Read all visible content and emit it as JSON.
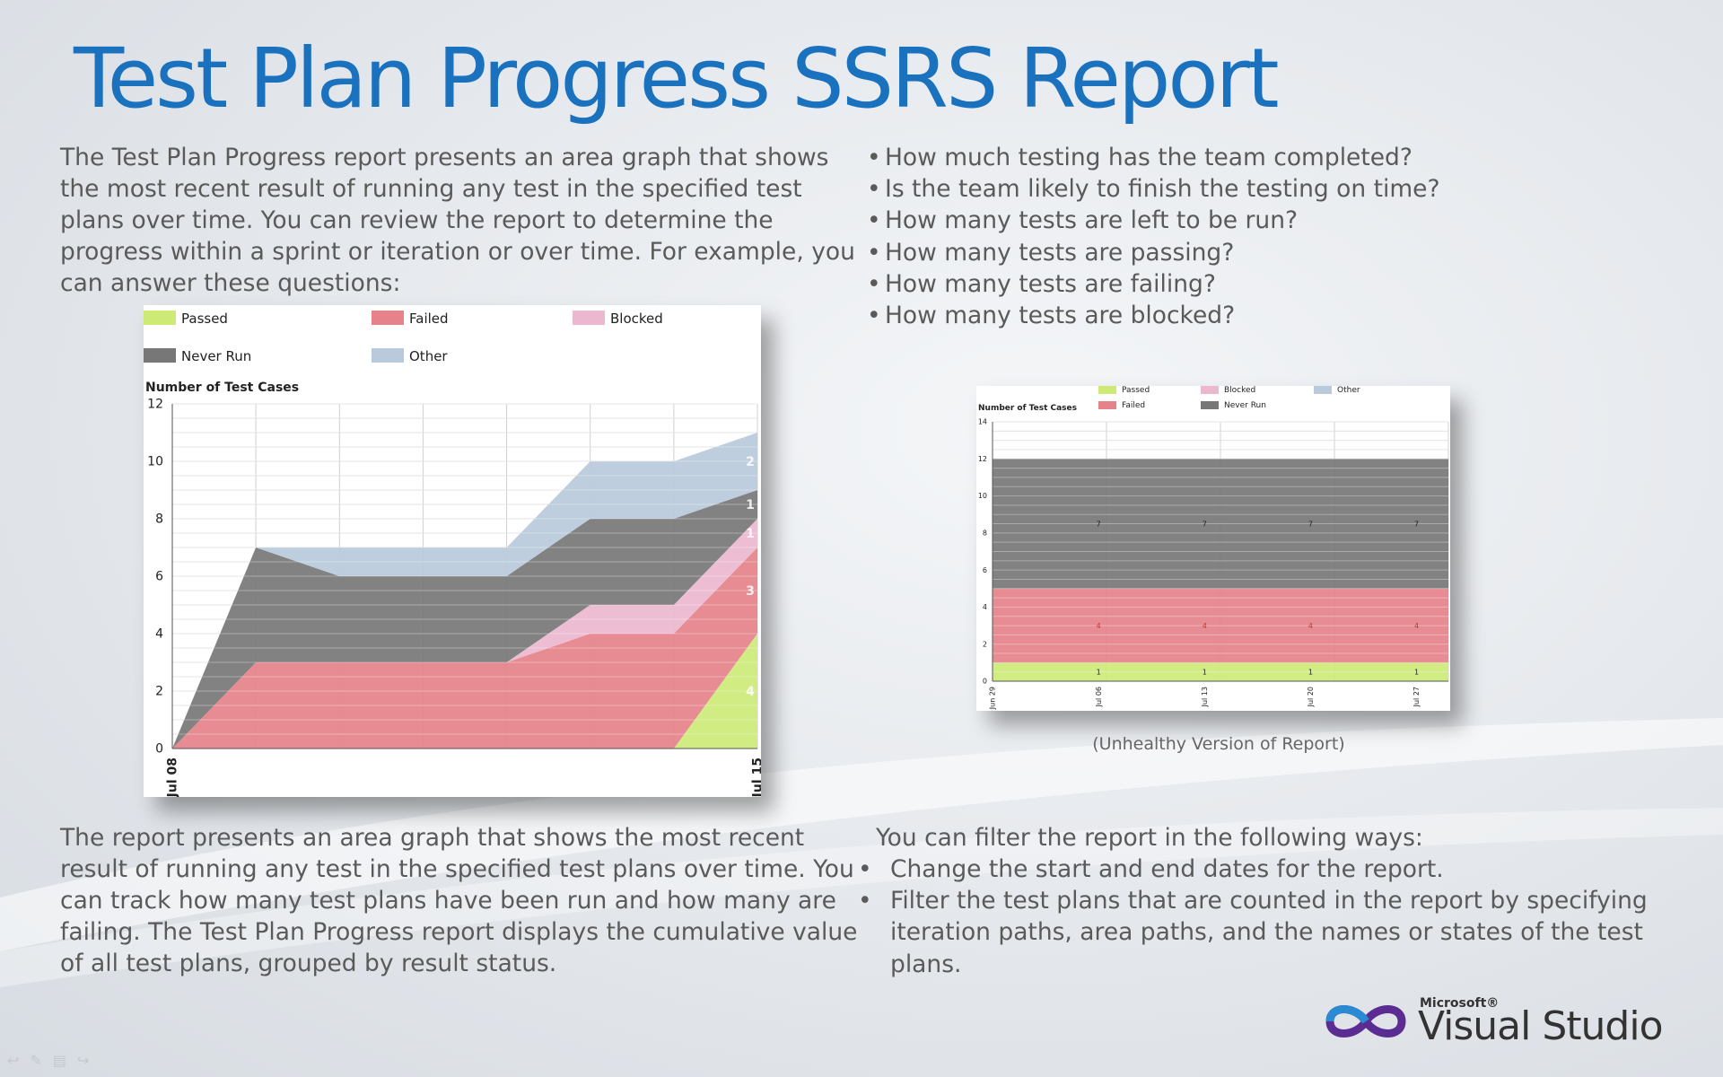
{
  "slide": {
    "title": "Test Plan Progress SSRS Report",
    "intro": "The Test Plan Progress report presents an area graph that shows the most recent result of running any test in the specified test plans over time. You can review the report to determine the progress within a sprint or iteration or over time. For example, you can answer these questions:",
    "questions": [
      "How much testing has the team completed?",
      "Is the team likely to finish the testing on time?",
      "How many tests are left to be run?",
      "How many tests are passing?",
      "How many tests are failing?",
      "How many tests are blocked?"
    ],
    "bottom_left": "The report presents an area graph that shows the most recent result of running any test in the specified test plans over time. You can track how many test plans have been run and how many are failing. The Test Plan Progress report displays the cumulative value of all test plans, grouped by result status.",
    "filters_intro": "You can filter the report in the following ways:",
    "filters": [
      "Change the start and end dates for the report.",
      "Filter the test plans that are counted in the report by specifying iteration paths, area paths, and the names or states of the test plans."
    ],
    "caption": "(Unhealthy Version of Report)",
    "bullet": "•",
    "logo": {
      "company": "Microsoft®",
      "product": "Visual Studio"
    }
  },
  "colors": {
    "title": "#1a71bd",
    "passed": "#cdea77",
    "failed": "#e5828a",
    "blocked": "#ebb8cf",
    "never_run": "#777777",
    "other": "#b8cadb"
  },
  "chart_data": [
    {
      "type": "area",
      "stacked": true,
      "ylabel": "Number of Test Cases",
      "ylim": [
        0,
        12
      ],
      "yticks": [
        0,
        2,
        4,
        6,
        8,
        10,
        12
      ],
      "x_tick_labels": [
        "Jul 08",
        "Jul 15"
      ],
      "x_points": 8,
      "legend": {
        "position": "top",
        "entries": [
          "Passed",
          "Failed",
          "Blocked",
          "Never Run",
          "Other"
        ]
      },
      "series": [
        {
          "name": "Passed",
          "color_key": "passed",
          "values": [
            0,
            0,
            0,
            0,
            0,
            0,
            0,
            4
          ]
        },
        {
          "name": "Failed",
          "color_key": "failed",
          "values": [
            0,
            3,
            3,
            3,
            3,
            4,
            4,
            3
          ]
        },
        {
          "name": "Blocked",
          "color_key": "blocked",
          "values": [
            0,
            0,
            0,
            0,
            0,
            1,
            1,
            1
          ]
        },
        {
          "name": "Never Run",
          "color_key": "never_run",
          "values": [
            0,
            4,
            3,
            3,
            3,
            3,
            3,
            1
          ]
        },
        {
          "name": "Other",
          "color_key": "other",
          "values": [
            0,
            0,
            1,
            1,
            1,
            2,
            2,
            2
          ]
        }
      ],
      "data_labels": [
        "4",
        "3",
        "1",
        "1",
        "2"
      ]
    },
    {
      "type": "area",
      "stacked": true,
      "ylabel": "Number of Test Cases",
      "ylim": [
        0,
        14
      ],
      "yticks": [
        0,
        2,
        4,
        6,
        8,
        10,
        12,
        14
      ],
      "x_tick_labels": [
        "Jun 29",
        "Jul 06",
        "Jul 13",
        "Jul 20",
        "Jul 27"
      ],
      "legend": {
        "position": "top",
        "entries": [
          "Passed",
          "Blocked",
          "Other",
          "Failed",
          "Never Run"
        ]
      },
      "series": [
        {
          "name": "Passed",
          "color_key": "passed",
          "values": [
            1,
            1,
            1,
            1,
            1
          ]
        },
        {
          "name": "Failed",
          "color_key": "failed",
          "values": [
            4,
            4,
            4,
            4,
            4
          ]
        },
        {
          "name": "Never Run",
          "color_key": "never_run",
          "values": [
            7,
            7,
            7,
            7,
            7
          ]
        }
      ],
      "data_labels": {
        "Passed": [
          "1",
          "1",
          "1",
          "1"
        ],
        "Failed": [
          "4",
          "4",
          "4",
          "4"
        ],
        "Never Run": [
          "7",
          "7",
          "7",
          "7"
        ]
      }
    }
  ]
}
